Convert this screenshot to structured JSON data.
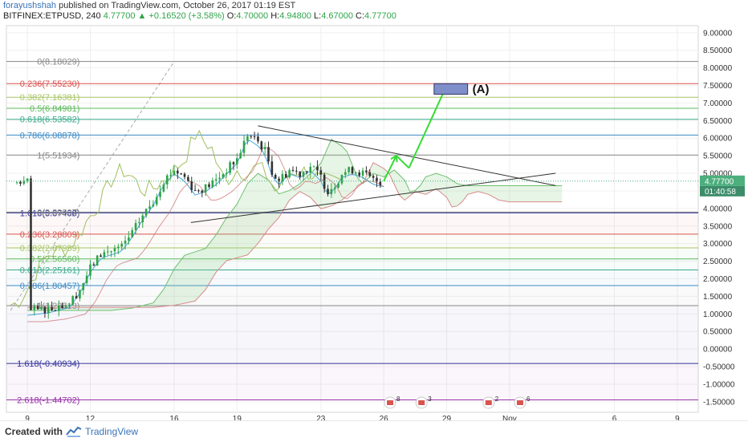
{
  "header": {
    "author": "forayushshah",
    "published": " published on TradingView.com, October 26, 2017 01:19 EST",
    "symbol": "BITFINEX:ETPUSD, 240",
    "last": "4.77700",
    "change": "+0.16520 (+3.58%)",
    "o_label": "O:",
    "o": "4.70000",
    "h_label": "H:",
    "h": "4.94800",
    "l_label": "L:",
    "l": "4.67000",
    "c_label": "C:",
    "c": "4.77700"
  },
  "footer": {
    "created_with": "Created with",
    "brand": "TradingView"
  },
  "colors": {
    "up": "#2ea44a",
    "down": "#333333",
    "price_badge": "#4caf7d",
    "time_badge": "#3d8c6a",
    "target_box": "#7f8fc9",
    "arrow": "#33dd33"
  },
  "chart_data": {
    "type": "candlestick",
    "symbol": "BITFINEX:ETPUSD",
    "interval": "240",
    "ylim": [
      -1.8,
      9.2
    ],
    "y_ticks": [
      "9.00000",
      "8.50000",
      "8.00000",
      "7.50000",
      "7.00000",
      "6.50000",
      "6.00000",
      "5.50000",
      "5.00000",
      "4.50000",
      "4.00000",
      "3.50000",
      "3.00000",
      "2.50000",
      "2.00000",
      "1.50000",
      "1.00000",
      "0.50000",
      "0.00000",
      "-0.50000",
      "-1.00000",
      "-1.50000"
    ],
    "x_ticks": [
      {
        "label": "9",
        "day": 9
      },
      {
        "label": "12",
        "day": 12
      },
      {
        "label": "16",
        "day": 16
      },
      {
        "label": "19",
        "day": 19
      },
      {
        "label": "23",
        "day": 23
      },
      {
        "label": "26",
        "day": 26
      },
      {
        "label": "29",
        "day": 29
      },
      {
        "label": "Nov",
        "day": 32
      },
      {
        "label": "6",
        "day": 37
      },
      {
        "label": "9",
        "day": 40
      }
    ],
    "price_badge": "4.77700",
    "time_badge": "01:40:58",
    "upper_fib": [
      {
        "label": "0(8.18029)",
        "value": 8.18029,
        "color": "#888888"
      },
      {
        "label": "0.236(7.55230)",
        "value": 7.5523,
        "color": "#d9534f"
      },
      {
        "label": "0.382(7.16381)",
        "value": 7.16381,
        "color": "#a8c464"
      },
      {
        "label": "0.5(6.84981)",
        "value": 6.84981,
        "color": "#5cb85c"
      },
      {
        "label": "0.618(6.53582)",
        "value": 6.53582,
        "color": "#3aaa8a"
      },
      {
        "label": "0.786(6.08878)",
        "value": 6.08878,
        "color": "#3a8ac4"
      },
      {
        "label": "1(5.51934)",
        "value": 5.51934,
        "color": "#888888"
      },
      {
        "label": "1.618(3.87488)",
        "value": 3.87488,
        "color": "#333399"
      }
    ],
    "lower_fib": [
      {
        "label": "0(3.89807)",
        "value": 3.89807,
        "color": "#888888"
      },
      {
        "label": "0.236(3.26809)",
        "value": 3.26809,
        "color": "#d9534f"
      },
      {
        "label": "0.382(2.87959)",
        "value": 2.87959,
        "color": "#a8c464"
      },
      {
        "label": "0.5(2.56560)",
        "value": 2.5656,
        "color": "#5cb85c"
      },
      {
        "label": "0.618(2.25161)",
        "value": 2.25161,
        "color": "#3aaa8a"
      },
      {
        "label": "0.786(1.80457)",
        "value": 1.80457,
        "color": "#3a8ac4"
      },
      {
        "label": "1(1.23513)",
        "value": 1.23513,
        "color": "#888888"
      },
      {
        "label": "1.618(-0.40934)",
        "value": -0.40934,
        "color": "#333399"
      },
      {
        "label": "2.618(-1.44702)",
        "value": -1.44702,
        "color": "#9933aa"
      }
    ],
    "target_label": "(A)",
    "events": [
      {
        "day": 26.3,
        "count": "8"
      },
      {
        "day": 27.8,
        "count": "3"
      },
      {
        "day": 31.0,
        "count": "2"
      },
      {
        "day": 32.5,
        "count": "6"
      }
    ],
    "close_path": [
      [
        9,
        1.08
      ],
      [
        10,
        1.15
      ],
      [
        11,
        1.3
      ],
      [
        11.5,
        1.7
      ],
      [
        12,
        2.3
      ],
      [
        12.5,
        2.7
      ],
      [
        13,
        2.8
      ],
      [
        13.5,
        2.9
      ],
      [
        14,
        3.3
      ],
      [
        14.5,
        3.8
      ],
      [
        15,
        4.2
      ],
      [
        15.5,
        4.8
      ],
      [
        16,
        5.1
      ],
      [
        16.5,
        4.9
      ],
      [
        17,
        4.5
      ],
      [
        17.5,
        4.6
      ],
      [
        18,
        4.8
      ],
      [
        18.5,
        5.1
      ],
      [
        19,
        5.4
      ],
      [
        19.5,
        6.1
      ],
      [
        20,
        5.9
      ],
      [
        20.3,
        5.7
      ],
      [
        20.7,
        5.0
      ],
      [
        21,
        4.8
      ],
      [
        21.5,
        5.1
      ],
      [
        22,
        5.0
      ],
      [
        22.5,
        5.2
      ],
      [
        23,
        4.9
      ],
      [
        23.3,
        4.5
      ],
      [
        23.7,
        4.7
      ],
      [
        24,
        5.0
      ],
      [
        24.5,
        5.1
      ],
      [
        25,
        5.0
      ],
      [
        25.5,
        4.8
      ],
      [
        26,
        4.74
      ]
    ],
    "projection": [
      [
        26.0,
        4.78
      ],
      [
        26.6,
        5.5
      ],
      [
        27.2,
        5.15
      ],
      [
        29.0,
        7.5
      ]
    ],
    "target_box": {
      "x0": 28.4,
      "x1": 30.0,
      "y0": 7.25,
      "y1": 7.55
    },
    "trend_upper": [
      [
        20.0,
        6.35
      ],
      [
        34.2,
        4.65
      ]
    ],
    "trend_lower": [
      [
        16.8,
        3.6
      ],
      [
        34.2,
        5.0
      ]
    ]
  }
}
